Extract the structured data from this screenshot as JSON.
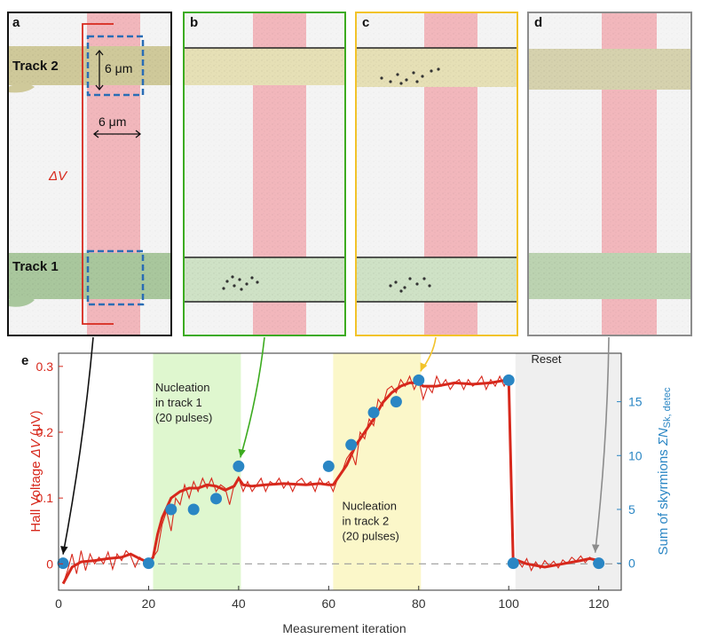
{
  "panels": [
    {
      "letter": "a",
      "track_top": "Track 2",
      "track_bottom": "Track 1",
      "dim_vertical": "6 μm",
      "dim_horizontal": "6 μm",
      "hall_label": "ΔV"
    },
    {
      "letter": "b"
    },
    {
      "letter": "c"
    },
    {
      "letter": "d"
    }
  ],
  "colors": {
    "hall": "#d7281c",
    "skyrmion": "#2a86c4",
    "panel_a": "#111111",
    "panel_b": "#3cab1f",
    "panel_c": "#f2c32a",
    "panel_d": "#8c8c8c",
    "hall_bar": "#f2b7bc",
    "track2": "#cfc99a",
    "track1": "#a9c79d",
    "region_green": "#dff7cf",
    "region_yellow": "#fbf7c9",
    "region_gray": "#efefef"
  },
  "chart_data": {
    "type": "line",
    "panel_letter": "e",
    "xlabel": "Measurement iteration",
    "ylabel_left_prefix": "Hall Voltage ",
    "ylabel_left_symbol": "ΔV",
    "ylabel_left_unit": " (μV)",
    "ylabel_right_prefix": "Sum of skyrmions ",
    "ylabel_right_symbol": "ΣN",
    "ylabel_right_sub": "Sk, detec",
    "xlim": [
      0,
      125
    ],
    "ylim_left": [
      -0.04,
      0.32
    ],
    "ylim_right": [
      -2.5,
      19.5
    ],
    "xticks": [
      0,
      20,
      40,
      60,
      80,
      100,
      120
    ],
    "xtick_labels": [
      "0",
      "20",
      "40",
      "60",
      "80",
      "100",
      "120"
    ],
    "yticks_left": [
      0,
      0.1,
      0.2,
      0.3
    ],
    "ytick_labels_left": [
      "0",
      "0.1",
      "0.2",
      "0.3"
    ],
    "yticks_right": [
      0,
      5,
      10,
      15
    ],
    "ytick_labels_right": [
      "0",
      "5",
      "10",
      "15"
    ],
    "regions": [
      {
        "x0": 21,
        "x1": 40.5,
        "color": "#dff7cf",
        "lines": [
          "Nucleation",
          "in track 1",
          "(20 pulses)"
        ],
        "label_x": 21.5,
        "label_y": 0.262
      },
      {
        "x0": 61,
        "x1": 80.5,
        "color": "#fbf7c9",
        "lines": [
          "Nucleation",
          "in track 2",
          "(20 pulses)"
        ],
        "label_x": 63,
        "label_y": 0.082
      },
      {
        "x0": 101.5,
        "x1": 125,
        "color": "#efefef",
        "lines": [
          "Reset"
        ],
        "label_x": 105,
        "label_y": 0.305
      }
    ],
    "series": [
      {
        "name": "raw",
        "axis": "left",
        "x": [
          1,
          2,
          3,
          4,
          5,
          6,
          7,
          8,
          9,
          10,
          11,
          12,
          13,
          14,
          15,
          16,
          17,
          18,
          19,
          20,
          21,
          22,
          23,
          24,
          25,
          26,
          27,
          28,
          29,
          30,
          31,
          32,
          33,
          34,
          35,
          36,
          37,
          38,
          39,
          40,
          41,
          42,
          43,
          44,
          45,
          46,
          47,
          48,
          49,
          50,
          51,
          52,
          53,
          54,
          55,
          56,
          57,
          58,
          59,
          60,
          61,
          62,
          63,
          64,
          65,
          66,
          67,
          68,
          69,
          70,
          71,
          72,
          73,
          74,
          75,
          76,
          77,
          78,
          79,
          80,
          81,
          82,
          83,
          84,
          85,
          86,
          87,
          88,
          89,
          90,
          91,
          92,
          93,
          94,
          95,
          96,
          97,
          98,
          99,
          100,
          101,
          102,
          103,
          104,
          105,
          106,
          107,
          108,
          109,
          110,
          111,
          112,
          113,
          114,
          115,
          116,
          117,
          118,
          119,
          120
        ],
        "values": [
          -0.03,
          -0.01,
          0.015,
          -0.015,
          0.02,
          -0.01,
          0.015,
          0.0,
          0.01,
          0.0,
          0.018,
          -0.008,
          0.015,
          0.005,
          0.02,
          0.012,
          -0.005,
          0.01,
          0.005,
          -0.002,
          0.01,
          0.02,
          0.06,
          0.08,
          0.05,
          0.1,
          0.09,
          0.12,
          0.1,
          0.125,
          0.11,
          0.13,
          0.115,
          0.13,
          0.11,
          0.12,
          0.115,
          0.09,
          0.12,
          0.13,
          0.11,
          0.125,
          0.11,
          0.12,
          0.13,
          0.11,
          0.125,
          0.12,
          0.13,
          0.115,
          0.125,
          0.11,
          0.125,
          0.13,
          0.12,
          0.125,
          0.11,
          0.13,
          0.12,
          0.125,
          0.11,
          0.13,
          0.14,
          0.16,
          0.17,
          0.15,
          0.2,
          0.19,
          0.22,
          0.21,
          0.25,
          0.24,
          0.265,
          0.27,
          0.26,
          0.28,
          0.27,
          0.285,
          0.265,
          0.28,
          0.25,
          0.27,
          0.26,
          0.285,
          0.27,
          0.28,
          0.265,
          0.275,
          0.28,
          0.265,
          0.28,
          0.27,
          0.275,
          0.285,
          0.265,
          0.28,
          0.27,
          0.285,
          0.27,
          0.285,
          0.0,
          0.005,
          -0.005,
          0.008,
          -0.01,
          0.003,
          -0.007,
          0.005,
          -0.003,
          0.004,
          -0.006,
          0.006,
          0.0,
          0.01,
          0.004,
          0.012,
          0.002,
          0.01,
          0.005,
          0.002
        ]
      },
      {
        "name": "smoothed",
        "axis": "left",
        "x": [
          1,
          3,
          5,
          8,
          11,
          14,
          16,
          18,
          20,
          21,
          22,
          23,
          25,
          27,
          29,
          31,
          33,
          35,
          37,
          39,
          40,
          41,
          43,
          46,
          50,
          55,
          58,
          60,
          61,
          62,
          64,
          66,
          68,
          70,
          72,
          74,
          76,
          78,
          80,
          81,
          84,
          88,
          92,
          96,
          100,
          101,
          102,
          104,
          108,
          112,
          116,
          118,
          120
        ],
        "values": [
          -0.03,
          -0.005,
          0.003,
          0.005,
          0.008,
          0.01,
          0.015,
          0.008,
          0.002,
          0.01,
          0.045,
          0.07,
          0.1,
          0.11,
          0.115,
          0.115,
          0.12,
          0.118,
          0.112,
          0.118,
          0.13,
          0.12,
          0.118,
          0.12,
          0.122,
          0.12,
          0.122,
          0.12,
          0.12,
          0.13,
          0.15,
          0.18,
          0.2,
          0.22,
          0.245,
          0.26,
          0.27,
          0.275,
          0.275,
          0.27,
          0.27,
          0.275,
          0.273,
          0.275,
          0.28,
          0.0,
          0.005,
          0.0,
          -0.005,
          0.0,
          0.005,
          0.008,
          0.005
        ]
      },
      {
        "name": "skyrmions",
        "axis": "right",
        "x": [
          1,
          20,
          25,
          30,
          35,
          40,
          60,
          65,
          70,
          75,
          80,
          100,
          101,
          120
        ],
        "values": [
          0,
          0,
          5,
          5,
          6,
          9,
          9,
          11,
          14,
          15,
          17,
          17,
          0,
          0
        ]
      }
    ],
    "zero_line": true
  }
}
